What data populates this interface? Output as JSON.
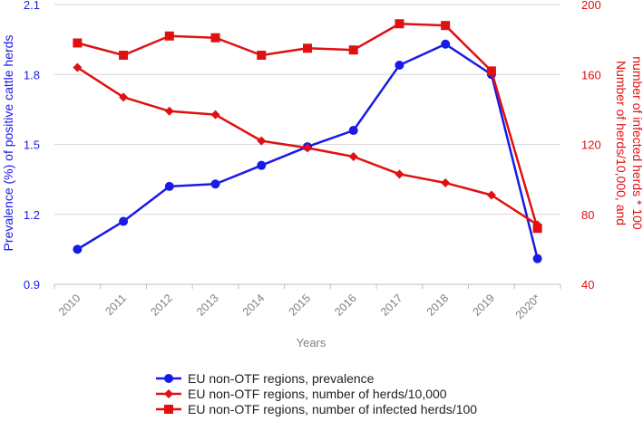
{
  "chart_data": {
    "type": "line",
    "title": "",
    "xlabel": "Years",
    "ylabel_left": "Prevalence (%) of positive cattle herds",
    "ylabel_right": "Number of herds/10,000, and number of infected herds * 100",
    "categories": [
      "2010",
      "2011",
      "2012",
      "2013",
      "2014",
      "2015",
      "2016",
      "2017",
      "2018",
      "2019",
      "2020*"
    ],
    "ylim_left": [
      0.9,
      2.1
    ],
    "yticks_left": [
      "0.9",
      "1.2",
      "1.5",
      "1.8",
      "2.1"
    ],
    "ylim_right": [
      40,
      200
    ],
    "yticks_right": [
      "40",
      "80",
      "120",
      "160",
      "200"
    ],
    "grid": "horizontal",
    "legend_position": "bottom",
    "series": [
      {
        "name": "EU non-OTF regions, prevalence",
        "axis": "left",
        "color": "#1a1ae6",
        "marker": "circle",
        "values": [
          1.05,
          1.17,
          1.32,
          1.33,
          1.41,
          1.49,
          1.56,
          1.84,
          1.93,
          1.8,
          1.01
        ]
      },
      {
        "name": "EU non-OTF regions, number of herds/10,000",
        "axis": "right",
        "color": "#e01010",
        "marker": "diamond",
        "values": [
          164,
          147,
          139,
          137,
          122,
          118,
          113,
          103,
          98,
          91,
          74
        ]
      },
      {
        "name": "EU non-OTF regions, number of infected herds/100",
        "axis": "right",
        "color": "#e01010",
        "marker": "square",
        "values": [
          178,
          171,
          182,
          181,
          171,
          175,
          174,
          189,
          188,
          162,
          72
        ]
      }
    ]
  }
}
